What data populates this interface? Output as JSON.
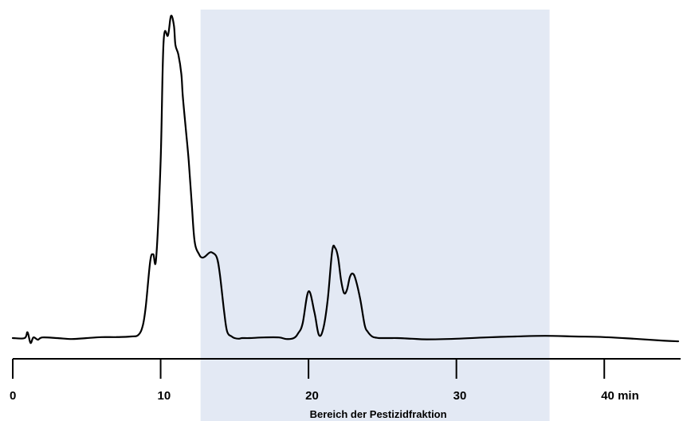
{
  "chart_data": {
    "type": "line",
    "title": "",
    "xlabel": "",
    "ylabel": "",
    "xlim": [
      0,
      45
    ],
    "ylim": [
      0,
      100
    ],
    "grid": false,
    "x_unit_label": "40 min",
    "ticks": [
      {
        "value": 0,
        "label": "0"
      },
      {
        "value": 10,
        "label": "10"
      },
      {
        "value": 20,
        "label": "20"
      },
      {
        "value": 30,
        "label": "30"
      },
      {
        "value": 40,
        "label": "40 min"
      }
    ],
    "shaded_region": {
      "x_start": 12.7,
      "x_end": 36.3,
      "label": "Bereich der Pestizidfraktion",
      "color": "#e3e9f4"
    },
    "series": [
      {
        "line_color": "#000000",
        "x": [
          0.0,
          0.8,
          1.0,
          1.2,
          1.4,
          1.7,
          2.0,
          3.0,
          4.0,
          5.0,
          6.0,
          7.0,
          8.0,
          8.5,
          8.8,
          9.0,
          9.3,
          9.5,
          9.7,
          10.0,
          10.2,
          10.5,
          10.7,
          10.9,
          11.0,
          11.2,
          11.4,
          11.5,
          11.7,
          11.9,
          12.1,
          12.3,
          12.6,
          12.8,
          13.0,
          13.3,
          13.5,
          13.8,
          14.0,
          14.3,
          14.5,
          14.8,
          15.0,
          15.3,
          15.5,
          16.0,
          17.0,
          18.0,
          18.5,
          19.0,
          19.3,
          19.6,
          20.0,
          20.4,
          20.7,
          21.0,
          21.3,
          21.6,
          21.8,
          22.0,
          22.2,
          22.4,
          22.6,
          22.8,
          23.0,
          23.2,
          23.5,
          23.8,
          24.0,
          24.3,
          24.6,
          24.8,
          25.0,
          25.5,
          26.0,
          27.0,
          28.0,
          30.0,
          32.0,
          34.0,
          36.0,
          38.0,
          40.0,
          42.0,
          44.0,
          45.0
        ],
        "y": [
          0.0,
          0.0,
          1.8,
          -1.5,
          0.2,
          -0.5,
          0.2,
          0.0,
          -0.3,
          0.0,
          0.3,
          0.3,
          0.5,
          1.0,
          4.0,
          10.0,
          24.0,
          26.0,
          25.0,
          55.0,
          92.0,
          94.0,
          100.0,
          97.0,
          91.0,
          88.0,
          82.0,
          75.0,
          65.0,
          55.0,
          42.0,
          30.0,
          26.0,
          25.0,
          25.3,
          26.5,
          26.5,
          25.0,
          20.0,
          8.0,
          2.0,
          0.5,
          0.0,
          -0.2,
          0.0,
          0.0,
          0.2,
          0.2,
          -0.3,
          0.0,
          1.5,
          4.5,
          14.5,
          8.0,
          1.0,
          3.0,
          12.0,
          27.0,
          28.0,
          25.0,
          18.0,
          14.0,
          15.0,
          19.0,
          20.0,
          18.0,
          12.0,
          4.0,
          2.0,
          0.5,
          0.1,
          0.0,
          0.0,
          0.0,
          0.0,
          -0.2,
          -0.4,
          -0.2,
          0.2,
          0.5,
          0.7,
          0.5,
          0.3,
          -0.2,
          -0.8,
          -1.0
        ]
      }
    ]
  }
}
